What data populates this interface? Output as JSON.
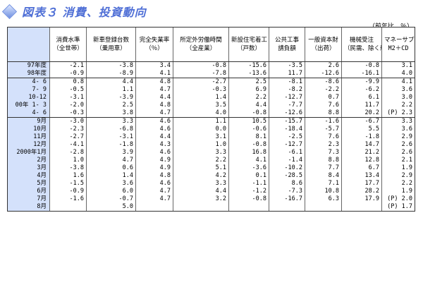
{
  "title": "図表３ 消費、投資動向",
  "unit": "（前年比、％）",
  "columns": [
    {
      "name": "消費水準",
      "sub": "（全世帯）"
    },
    {
      "name": "新車登録台数",
      "sub": "（乗用車）"
    },
    {
      "name": "完全失業率",
      "sub": "（％）"
    },
    {
      "name": "所定外労働時間",
      "sub": "（全産業）"
    },
    {
      "name": "新設住宅着工",
      "sub": "（戸数）"
    },
    {
      "name": "公共工事",
      "sub": "請負額"
    },
    {
      "name": "一般資本財",
      "sub": "（出荷）"
    },
    {
      "name": "機械受注",
      "sub": "（民需、除く船舶・電力）"
    },
    {
      "name": "マネーサプライ",
      "sub": "M2＋CD"
    }
  ],
  "sections": [
    [
      {
        "label": "97年度",
        "values": [
          "-2.1",
          "-3.8",
          "3.4",
          "-0.8",
          "-15.6",
          "-3.5",
          "2.6",
          "-0.8",
          "3.1"
        ]
      },
      {
        "label": "98年度",
        "values": [
          "-0.9",
          "-8.9",
          "4.1",
          "-7.8",
          "-13.6",
          "11.7",
          "-12.6",
          "-16.1",
          "4.0"
        ]
      }
    ],
    [
      {
        "label": "4- 6",
        "values": [
          "0.8",
          "4.4",
          "4.8",
          "-2.7",
          "2.5",
          "-8.1",
          "-8.6",
          "-9.9",
          "4.1"
        ]
      },
      {
        "label": "7- 9",
        "values": [
          "-0.5",
          "1.1",
          "4.7",
          "-0.3",
          "6.9",
          "-8.2",
          "-2.2",
          "-6.2",
          "3.6"
        ]
      },
      {
        "label": "10-12",
        "values": [
          "-3.1",
          "-3.9",
          "4.4",
          "1.4",
          "2.2",
          "-12.7",
          "0.7",
          "6.1",
          "3.0"
        ]
      },
      {
        "label": "00年 1- 3",
        "values": [
          "-2.0",
          "2.5",
          "4.8",
          "3.5",
          "4.4",
          "-7.7",
          "7.6",
          "11.7",
          "2.2"
        ]
      },
      {
        "label": "4- 6",
        "values": [
          "-0.3",
          "3.8",
          "4.7",
          "4.0",
          "-0.8",
          "-12.6",
          "8.8",
          "20.2",
          "(P) 2.3"
        ]
      }
    ],
    [
      {
        "label": "9月",
        "values": [
          "-3.0",
          "3.3",
          "4.6",
          "1.1",
          "10.5",
          "-15.7",
          "-1.6",
          "-6.7",
          "3.3"
        ]
      },
      {
        "label": "10月",
        "values": [
          "-2.3",
          "-6.8",
          "4.6",
          "0.0",
          "-0.6",
          "-18.4",
          "-5.7",
          "5.5",
          "3.6"
        ]
      },
      {
        "label": "11月",
        "values": [
          "-2.7",
          "-3.1",
          "4.4",
          "3.1",
          "8.1",
          "-2.5",
          "7.6",
          "-1.8",
          "2.9"
        ]
      },
      {
        "label": "12月",
        "values": [
          "-4.1",
          "-1.8",
          "4.3",
          "1.0",
          "-0.8",
          "-12.7",
          "2.3",
          "14.7",
          "2.6"
        ]
      },
      {
        "label": "2000年1月",
        "values": [
          "-2.8",
          "3.9",
          "4.6",
          "3.3",
          "16.8",
          "-6.1",
          "7.3",
          "21.2",
          "2.6"
        ]
      },
      {
        "label": "2月",
        "values": [
          "1.0",
          "4.7",
          "4.9",
          "2.2",
          "4.1",
          "-1.4",
          "8.8",
          "12.8",
          "2.1"
        ]
      },
      {
        "label": "3月",
        "values": [
          "-3.8",
          "0.6",
          "4.9",
          "5.1",
          "-3.6",
          "-10.2",
          "7.7",
          "6.7",
          "1.9"
        ]
      },
      {
        "label": "4月",
        "values": [
          "1.6",
          "1.4",
          "4.8",
          "4.2",
          "0.1",
          "-28.5",
          "8.4",
          "13.4",
          "2.9"
        ]
      },
      {
        "label": "5月",
        "values": [
          "-1.5",
          "3.6",
          "4.6",
          "3.3",
          "-1.1",
          "8.6",
          "7.1",
          "17.7",
          "2.2"
        ]
      },
      {
        "label": "6月",
        "values": [
          "-0.9",
          "6.0",
          "4.7",
          "4.4",
          "-1.2",
          "-7.3",
          "10.8",
          "28.2",
          "1.9"
        ]
      },
      {
        "label": "7月",
        "values": [
          "-1.6",
          "-0.7",
          "4.7",
          "3.2",
          "-0.8",
          "-16.7",
          "6.3",
          "17.9",
          "(P) 2.0"
        ]
      },
      {
        "label": "8月",
        "values": [
          "",
          "5.0",
          "",
          "",
          "",
          "",
          "",
          "",
          "(P) 1.7"
        ]
      }
    ]
  ]
}
